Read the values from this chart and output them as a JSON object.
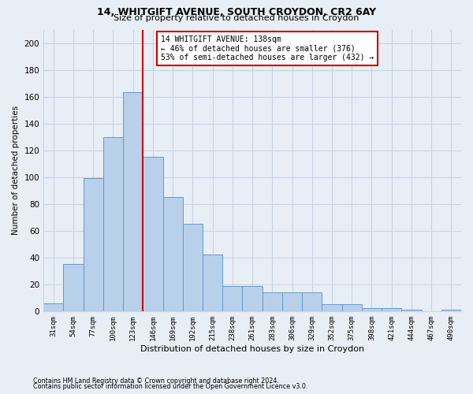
{
  "title1": "14, WHITGIFT AVENUE, SOUTH CROYDON, CR2 6AY",
  "title2": "Size of property relative to detached houses in Croydon",
  "xlabel": "Distribution of detached houses by size in Croydon",
  "ylabel": "Number of detached properties",
  "footnote1": "Contains HM Land Registry data © Crown copyright and database right 2024.",
  "footnote2": "Contains public sector information licensed under the Open Government Licence v3.0.",
  "categories": [
    "31sqm",
    "54sqm",
    "77sqm",
    "100sqm",
    "123sqm",
    "146sqm",
    "169sqm",
    "192sqm",
    "215sqm",
    "238sqm",
    "261sqm",
    "283sqm",
    "306sqm",
    "329sqm",
    "352sqm",
    "375sqm",
    "398sqm",
    "421sqm",
    "444sqm",
    "467sqm",
    "490sqm"
  ],
  "values": [
    6,
    35,
    99,
    130,
    163,
    115,
    85,
    65,
    42,
    19,
    19,
    14,
    14,
    14,
    5,
    5,
    2,
    2,
    1,
    0,
    1
  ],
  "bar_color": "#b8d0ea",
  "bar_edge_color": "#6699cc",
  "grid_color": "#c8d4e3",
  "background_color": "#e8eef5",
  "property_label": "14 WHITGIFT AVENUE: 138sqm",
  "annotation_line1": "← 46% of detached houses are smaller (376)",
  "annotation_line2": "53% of semi-detached houses are larger (432) →",
  "vline_color": "#cc0000",
  "annotation_box_color": "#ffffff",
  "annotation_box_edge": "#cc0000",
  "ylim": [
    0,
    210
  ],
  "yticks": [
    0,
    20,
    40,
    60,
    80,
    100,
    120,
    140,
    160,
    180,
    200
  ]
}
